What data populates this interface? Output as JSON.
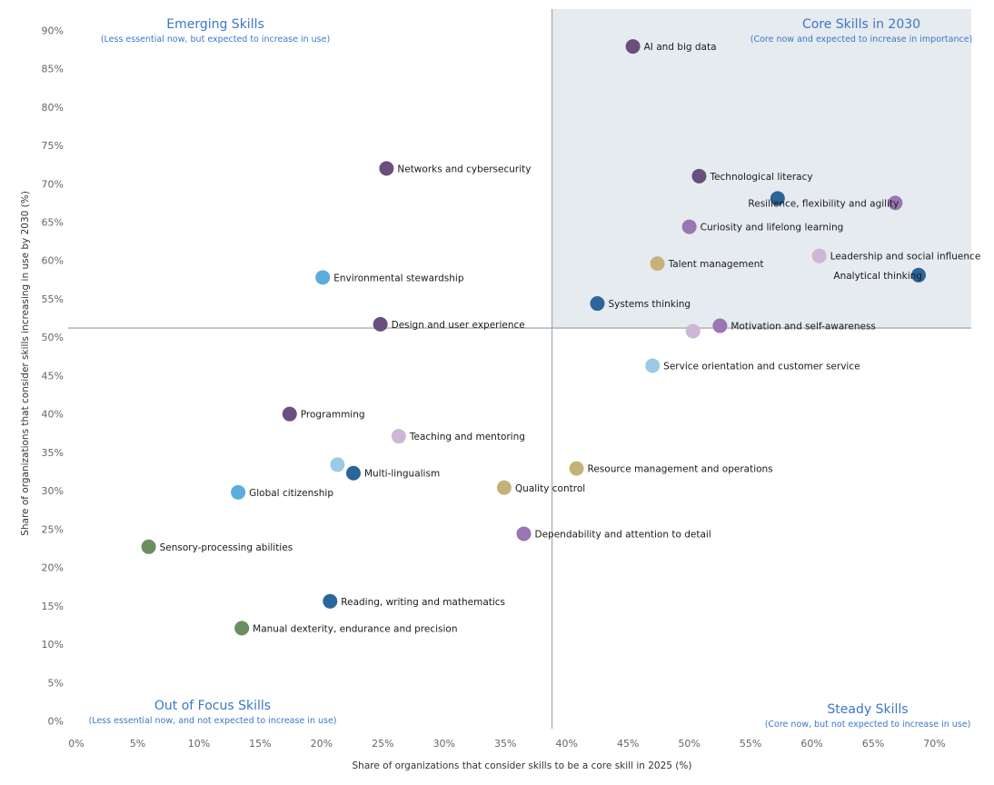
{
  "chart_data": {
    "type": "scatter",
    "xlabel": "Share of organizations that consider skills to be a core skill in 2025 (%)",
    "ylabel": "Share of organizations that consider skills increasing in use by 2030 (%)",
    "xlim": [
      0,
      73
    ],
    "ylim": [
      -1,
      93
    ],
    "x_ticks": [
      0,
      5,
      10,
      15,
      20,
      25,
      30,
      35,
      40,
      45,
      50,
      55,
      60,
      65,
      70
    ],
    "y_ticks": [
      0,
      5,
      10,
      15,
      20,
      25,
      30,
      35,
      40,
      45,
      50,
      55,
      60,
      65,
      70,
      75,
      80,
      85,
      90
    ],
    "tick_suffix": "%",
    "divider_x": 38.8,
    "divider_y": 51.2,
    "grid": false,
    "highlight_quadrant": "top-right",
    "highlight_color": "#e6ebf0",
    "quadrants": [
      {
        "title": "Emerging Skills",
        "subtitle": "(Less essential now, but expected to increase in use)",
        "position": "top-left"
      },
      {
        "title": "Core Skills in 2030",
        "subtitle": "(Core now and expected to increase in importance)",
        "position": "top-right"
      },
      {
        "title": "Out of Focus Skills",
        "subtitle": "(Less essential now, and not expected to increase in use)",
        "position": "bottom-left"
      },
      {
        "title": "Steady Skills",
        "subtitle": "(Core now, but not expected to increase in use)",
        "position": "bottom-right"
      }
    ],
    "points": [
      {
        "label": "AI and big data",
        "x": 45.4,
        "y": 87.9,
        "color": "#6a4f7e",
        "label_side": "right"
      },
      {
        "label": "Networks and cybersecurity",
        "x": 25.3,
        "y": 72.0,
        "color": "#6a4f7e",
        "label_side": "right"
      },
      {
        "label": "Technological literacy",
        "x": 50.8,
        "y": 71.0,
        "color": "#6a4f7e",
        "label_side": "right"
      },
      {
        "label": "",
        "x": 57.2,
        "y": 68.1,
        "color": "#2c6599",
        "label_side": "right"
      },
      {
        "label": "Resilience, flexibility and agility",
        "x": 66.8,
        "y": 67.5,
        "color": "#9a76b2",
        "label_side": "left"
      },
      {
        "label": "Curiosity and lifelong learning",
        "x": 50.0,
        "y": 64.4,
        "color": "#9a76b2",
        "label_side": "right"
      },
      {
        "label": "Leadership and social influence",
        "x": 60.6,
        "y": 60.6,
        "color": "#cdb7d5",
        "label_side": "right"
      },
      {
        "label": "Talent management",
        "x": 47.4,
        "y": 59.6,
        "color": "#c6b279",
        "label_side": "right"
      },
      {
        "label": "Analytical thinking",
        "x": 68.7,
        "y": 58.1,
        "color": "#2c6599",
        "label_side": "left"
      },
      {
        "label": "Environmental stewardship",
        "x": 20.1,
        "y": 57.8,
        "color": "#5aaddd",
        "label_side": "right"
      },
      {
        "label": "Systems thinking",
        "x": 42.5,
        "y": 54.4,
        "color": "#2c6599",
        "label_side": "right"
      },
      {
        "label": "Design and user experience",
        "x": 24.8,
        "y": 51.7,
        "color": "#6a4f7e",
        "label_side": "right"
      },
      {
        "label": "Motivation and self-awareness",
        "x": 52.5,
        "y": 51.5,
        "color": "#9a76b2",
        "label_side": "right"
      },
      {
        "label": "",
        "x": 50.3,
        "y": 50.8,
        "color": "#cdb7d5",
        "label_side": "right"
      },
      {
        "label": "Service orientation and customer service",
        "x": 47.0,
        "y": 46.3,
        "color": "#9bcbe4",
        "label_side": "right"
      },
      {
        "label": "Programming",
        "x": 17.4,
        "y": 40.0,
        "color": "#6a4f7e",
        "label_side": "right"
      },
      {
        "label": "Teaching and mentoring",
        "x": 26.3,
        "y": 37.1,
        "color": "#cdb7d5",
        "label_side": "right"
      },
      {
        "label": "",
        "x": 21.3,
        "y": 33.4,
        "color": "#9bcbe4",
        "label_side": "right"
      },
      {
        "label": "Resource management and operations",
        "x": 40.8,
        "y": 32.9,
        "color": "#c6b279",
        "label_side": "right"
      },
      {
        "label": "Multi-lingualism",
        "x": 22.6,
        "y": 32.3,
        "color": "#2c6599",
        "label_side": "right"
      },
      {
        "label": "Quality control",
        "x": 34.9,
        "y": 30.4,
        "color": "#c6b279",
        "label_side": "right"
      },
      {
        "label": "Global citizenship",
        "x": 13.2,
        "y": 29.8,
        "color": "#5aaddd",
        "label_side": "right"
      },
      {
        "label": "Dependability and attention to detail",
        "x": 36.5,
        "y": 24.4,
        "color": "#9a76b2",
        "label_side": "right"
      },
      {
        "label": "Sensory-processing abilities",
        "x": 5.9,
        "y": 22.7,
        "color": "#6b8e63",
        "label_side": "right"
      },
      {
        "label": "Reading, writing and mathematics",
        "x": 20.7,
        "y": 15.6,
        "color": "#2c6599",
        "label_side": "right"
      },
      {
        "label": "Manual dexterity, endurance and precision",
        "x": 13.5,
        "y": 12.1,
        "color": "#6b8e63",
        "label_side": "right"
      }
    ]
  }
}
